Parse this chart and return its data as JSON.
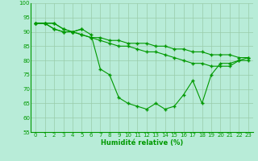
{
  "background_color": "#b8ecd8",
  "grid_color_major": "#99ccaa",
  "grid_color_minor": "#cceedd",
  "line_color": "#009900",
  "marker_color": "#009900",
  "xlabel": "Humidité relative (%)",
  "xlabel_color": "#009900",
  "tick_color": "#009900",
  "ylim": [
    55,
    100
  ],
  "xlim": [
    -0.5,
    23.5
  ],
  "yticks": [
    55,
    60,
    65,
    70,
    75,
    80,
    85,
    90,
    95,
    100
  ],
  "xticks": [
    0,
    1,
    2,
    3,
    4,
    5,
    6,
    7,
    8,
    9,
    10,
    11,
    12,
    13,
    14,
    15,
    16,
    17,
    18,
    19,
    20,
    21,
    22,
    23
  ],
  "series": [
    {
      "x": [
        0,
        1,
        2,
        3,
        4,
        5,
        6,
        7,
        8,
        9,
        10,
        11,
        12,
        13,
        14,
        15,
        16,
        17,
        18,
        19,
        20,
        21,
        22,
        23
      ],
      "y": [
        93,
        93,
        93,
        91,
        90,
        91,
        89,
        77,
        75,
        67,
        65,
        64,
        63,
        65,
        63,
        64,
        68,
        73,
        65,
        75,
        79,
        79,
        80,
        81
      ]
    },
    {
      "x": [
        0,
        1,
        2,
        3,
        4,
        5,
        6,
        7,
        8,
        9,
        10,
        11,
        12,
        13,
        14,
        15,
        16,
        17,
        18,
        19,
        20,
        21,
        22,
        23
      ],
      "y": [
        93,
        93,
        93,
        91,
        90,
        89,
        88,
        88,
        87,
        87,
        86,
        86,
        86,
        85,
        85,
        84,
        84,
        83,
        83,
        82,
        82,
        82,
        81,
        81
      ]
    },
    {
      "x": [
        0,
        1,
        2,
        3,
        4,
        5,
        6,
        7,
        8,
        9,
        10,
        11,
        12,
        13,
        14,
        15,
        16,
        17,
        18,
        19,
        20,
        21,
        22,
        23
      ],
      "y": [
        93,
        93,
        91,
        90,
        90,
        89,
        88,
        87,
        86,
        85,
        85,
        84,
        83,
        83,
        82,
        81,
        80,
        79,
        79,
        78,
        78,
        78,
        80,
        80
      ]
    },
    {
      "x": [
        0,
        1,
        2,
        3,
        4,
        5
      ],
      "y": [
        93,
        93,
        91,
        90,
        90,
        91
      ]
    }
  ]
}
